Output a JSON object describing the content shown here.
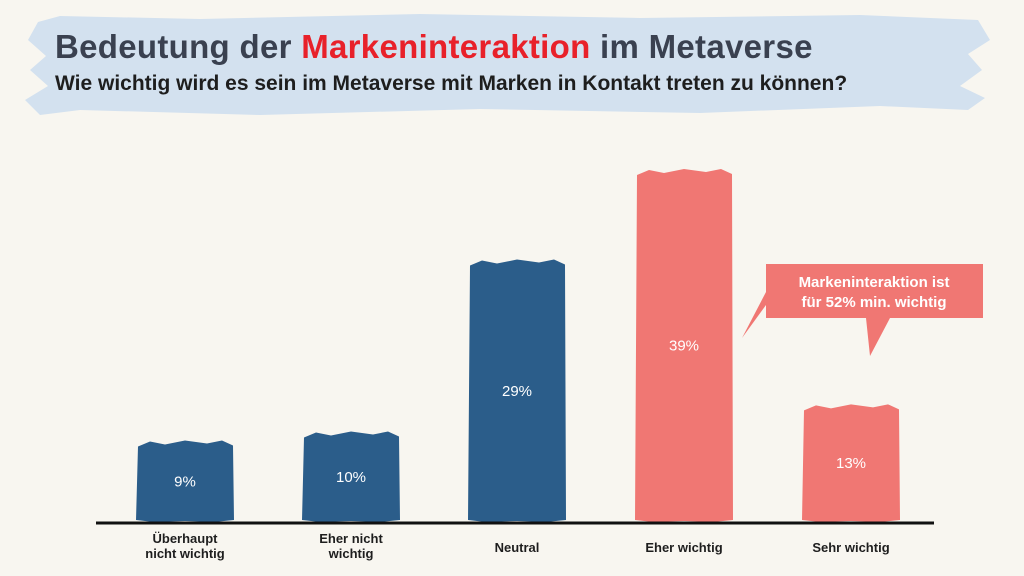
{
  "header": {
    "title_prefix": "Bedeutung der ",
    "title_highlight": "Markeninteraktion",
    "title_suffix": " im Metaverse",
    "subtitle": "Wie wichtig wird es sein im Metaverse mit Marken in Kontakt treten zu können?"
  },
  "chart_data": {
    "type": "bar",
    "title": "Bedeutung der Markeninteraktion im Metaverse",
    "subtitle": "Wie wichtig wird es sein im Metaverse mit Marken in Kontakt treten zu können?",
    "categories": [
      [
        "Überhaupt",
        "nicht wichtig"
      ],
      [
        "Eher nicht",
        "wichtig"
      ],
      [
        "Neutral"
      ],
      [
        "Eher wichtig"
      ],
      [
        "Sehr wichtig"
      ]
    ],
    "values": [
      9,
      10,
      29,
      39,
      13
    ],
    "value_labels": [
      "9%",
      "10%",
      "29%",
      "39%",
      "13%"
    ],
    "colors": [
      "#2b5d8a",
      "#2b5d8a",
      "#2b5d8a",
      "#f07773",
      "#f07773"
    ],
    "ylim": [
      0,
      45
    ],
    "grid": false,
    "legend": "none",
    "callout": {
      "lines": [
        "Markeninteraktion ist",
        "für 52% min. wichtig"
      ],
      "color": "#f07773"
    }
  },
  "colors": {
    "background": "#f8f6f0",
    "header_brush": "#d3e1ef",
    "title": "#3a4150",
    "title_highlight": "#e8212a",
    "negative_bar": "#2b5d8a",
    "positive_bar": "#f07773",
    "axis": "#111111"
  }
}
